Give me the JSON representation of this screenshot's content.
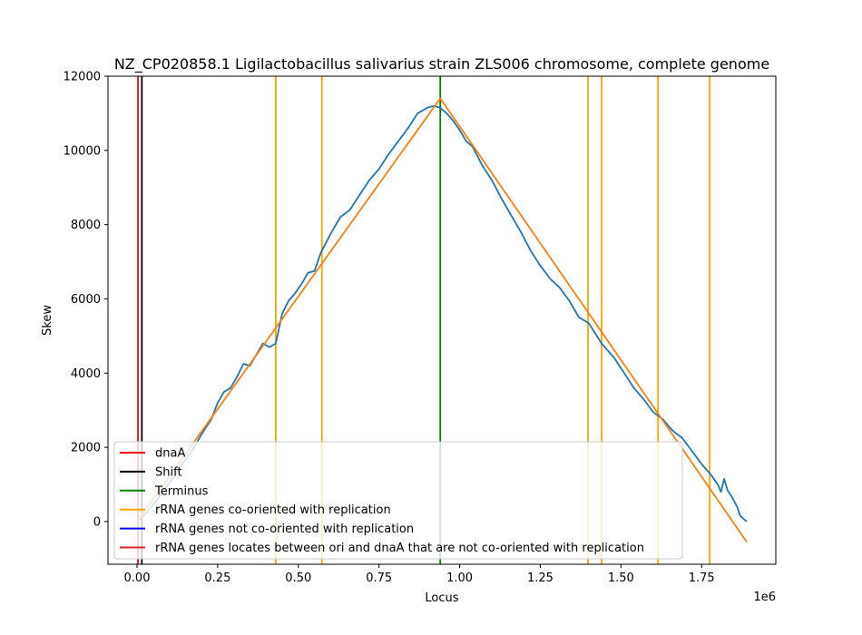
{
  "chart_data": {
    "type": "line",
    "title": "NZ_CP020858.1 Ligilactobacillus salivarius strain ZLS006 chromosome, complete genome",
    "xlabel": "Locus",
    "ylabel": "Skew",
    "x_offset_text": "1e6",
    "xlim": [
      -0.09,
      1.98
    ],
    "ylim": [
      -1150,
      12000
    ],
    "x_ticks": [
      0.0,
      0.25,
      0.5,
      0.75,
      1.0,
      1.25,
      1.5,
      1.75
    ],
    "x_tick_labels": [
      "0.00",
      "0.25",
      "0.50",
      "0.75",
      "1.00",
      "1.25",
      "1.50",
      "1.75"
    ],
    "y_ticks": [
      0,
      2000,
      4000,
      6000,
      8000,
      10000,
      12000
    ],
    "y_tick_labels": [
      "0",
      "2000",
      "4000",
      "6000",
      "8000",
      "10000",
      "12000"
    ],
    "grid": false,
    "legend_position": "bottom-left",
    "series": [
      {
        "color": "#1f77b4",
        "x": [
          0.0,
          0.02,
          0.05,
          0.08,
          0.11,
          0.14,
          0.17,
          0.2,
          0.23,
          0.25,
          0.27,
          0.29,
          0.31,
          0.33,
          0.35,
          0.37,
          0.39,
          0.41,
          0.43,
          0.45,
          0.47,
          0.49,
          0.51,
          0.53,
          0.55,
          0.57,
          0.6,
          0.63,
          0.66,
          0.69,
          0.72,
          0.75,
          0.78,
          0.81,
          0.84,
          0.87,
          0.9,
          0.92,
          0.94,
          0.96,
          0.98,
          1.0,
          1.02,
          1.04,
          1.07,
          1.1,
          1.13,
          1.16,
          1.19,
          1.22,
          1.25,
          1.28,
          1.31,
          1.34,
          1.37,
          1.4,
          1.44,
          1.48,
          1.51,
          1.54,
          1.57,
          1.6,
          1.63,
          1.66,
          1.69,
          1.72,
          1.75,
          1.78,
          1.8,
          1.81,
          1.82,
          1.83,
          1.845,
          1.86,
          1.87,
          1.89
        ],
        "y": [
          0,
          150,
          450,
          800,
          1150,
          1550,
          1900,
          2350,
          2750,
          3200,
          3500,
          3600,
          3900,
          4250,
          4200,
          4500,
          4800,
          4700,
          4800,
          5600,
          5950,
          6150,
          6400,
          6700,
          6750,
          7250,
          7750,
          8200,
          8400,
          8800,
          9200,
          9500,
          9900,
          10250,
          10600,
          11000,
          11150,
          11200,
          11150,
          11000,
          10800,
          10550,
          10250,
          10100,
          9600,
          9200,
          8700,
          8250,
          7800,
          7300,
          6900,
          6550,
          6300,
          5950,
          5500,
          5350,
          4800,
          4400,
          4000,
          3600,
          3300,
          2950,
          2750,
          2450,
          2250,
          1900,
          1550,
          1250,
          1000,
          800,
          1150,
          850,
          650,
          400,
          150,
          0
        ]
      },
      {
        "color": "#ff7f0e",
        "x": [
          0.0,
          0.94,
          1.89
        ],
        "y": [
          0,
          11400,
          -550
        ]
      }
    ],
    "vlines": [
      {
        "x": 0.003,
        "color": "#ff0000",
        "legend_index": 0
      },
      {
        "x": 0.015,
        "color": "#000000",
        "legend_index": 1
      },
      {
        "x": 0.94,
        "color": "#008000",
        "legend_index": 2
      },
      {
        "x": 0.43,
        "color": "#ffa500",
        "legend_index": 3
      },
      {
        "x": 0.573,
        "color": "#ffa500",
        "legend_index": 3
      },
      {
        "x": 1.398,
        "color": "#ffa500",
        "legend_index": 3
      },
      {
        "x": 1.44,
        "color": "#ffa500",
        "legend_index": 3
      },
      {
        "x": 1.615,
        "color": "#ffa500",
        "legend_index": 3
      },
      {
        "x": 1.775,
        "color": "#ffa500",
        "legend_index": 3
      }
    ],
    "legend": [
      {
        "label": "dnaA",
        "color": "#ff0000"
      },
      {
        "label": "Shift",
        "color": "#000000"
      },
      {
        "label": "Terminus",
        "color": "#008000"
      },
      {
        "label": "rRNA genes co-oriented with replication",
        "color": "#ffa500"
      },
      {
        "label": "rRNA genes not co-oriented with replication",
        "color": "#0000ff"
      },
      {
        "label": "rRNA genes locates between ori and dnaA that are not co-oriented with replication",
        "color": "#d62728"
      }
    ]
  }
}
